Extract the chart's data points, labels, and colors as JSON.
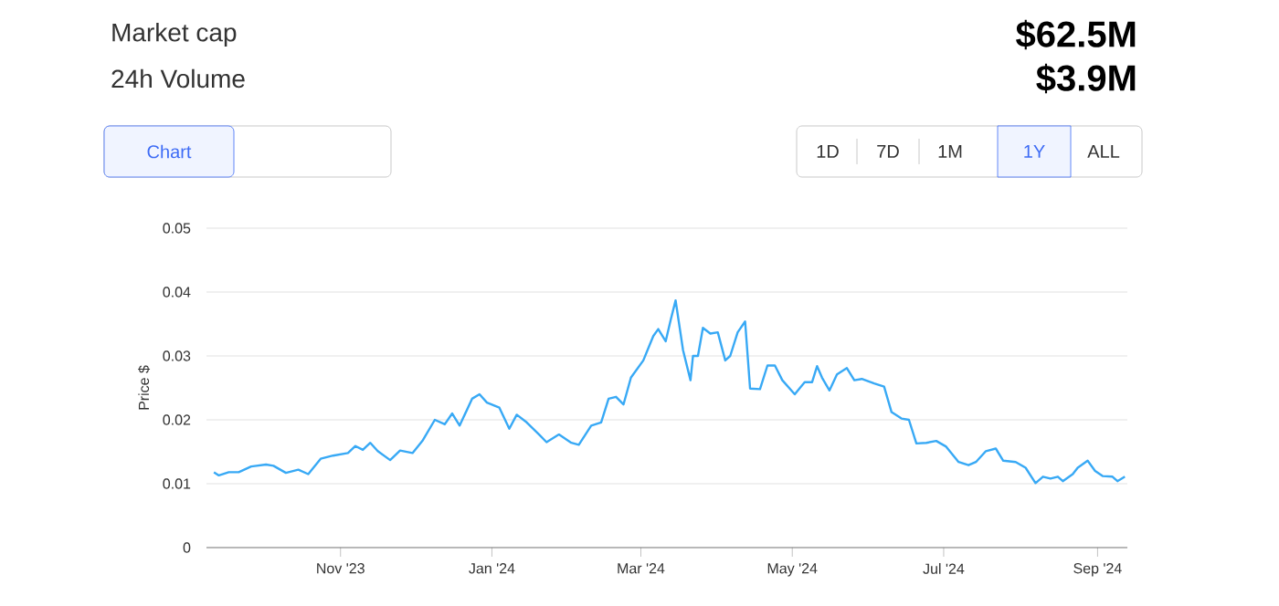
{
  "chart_data": {
    "type": "line",
    "ylabel": "Price $",
    "annotations": [
      "Market cap",
      "24h Volume",
      "$62.5M",
      "$3.9M",
      "Chart",
      "1D",
      "7D",
      "1M",
      "1Y",
      "ALL"
    ],
    "x": [
      "2023-09-11",
      "2023-09-13",
      "2023-09-17",
      "2023-09-21",
      "2023-09-26",
      "2023-10-02",
      "2023-10-05",
      "2023-10-10",
      "2023-10-15",
      "2023-10-19",
      "2023-10-24",
      "2023-10-29",
      "2023-11-04",
      "2023-11-07",
      "2023-11-10",
      "2023-11-13",
      "2023-11-16",
      "2023-11-21",
      "2023-11-25",
      "2023-11-30",
      "2023-12-04",
      "2023-12-09",
      "2023-12-13",
      "2023-12-16",
      "2023-12-19",
      "2023-12-24",
      "2023-12-27",
      "2023-12-30",
      "2024-01-04",
      "2024-01-08",
      "2024-01-11",
      "2024-01-15",
      "2024-01-20",
      "2024-01-23",
      "2024-01-28",
      "2024-02-02",
      "2024-02-05",
      "2024-02-10",
      "2024-02-14",
      "2024-02-17",
      "2024-02-20",
      "2024-02-23",
      "2024-02-26",
      "2024-03-02",
      "2024-03-06",
      "2024-03-08",
      "2024-03-11",
      "2024-03-13",
      "2024-03-15",
      "2024-03-18",
      "2024-03-21",
      "2024-03-22",
      "2024-03-24",
      "2024-03-26",
      "2024-03-29",
      "2024-04-01",
      "2024-04-04",
      "2024-04-06",
      "2024-04-09",
      "2024-04-12",
      "2024-04-14",
      "2024-04-18",
      "2024-04-21",
      "2024-04-24",
      "2024-04-27",
      "2024-05-02",
      "2024-05-06",
      "2024-05-09",
      "2024-05-11",
      "2024-05-13",
      "2024-05-16",
      "2024-05-19",
      "2024-05-23",
      "2024-05-26",
      "2024-05-29",
      "2024-06-03",
      "2024-06-07",
      "2024-06-10",
      "2024-06-14",
      "2024-06-17",
      "2024-06-20",
      "2024-06-24",
      "2024-06-28",
      "2024-07-02",
      "2024-07-07",
      "2024-07-11",
      "2024-07-14",
      "2024-07-18",
      "2024-07-22",
      "2024-07-25",
      "2024-07-30",
      "2024-08-03",
      "2024-08-07",
      "2024-08-10",
      "2024-08-13",
      "2024-08-16",
      "2024-08-18",
      "2024-08-22",
      "2024-08-24",
      "2024-08-28",
      "2024-08-31",
      "2024-09-03",
      "2024-09-07",
      "2024-09-09",
      "2024-09-12"
    ],
    "series": [
      {
        "color": "#38a9f5",
        "values": [
          0.0118,
          0.0113,
          0.0118,
          0.0118,
          0.0127,
          0.013,
          0.0128,
          0.0117,
          0.0122,
          0.0115,
          0.0139,
          0.0144,
          0.0148,
          0.0159,
          0.0153,
          0.0164,
          0.0151,
          0.0137,
          0.0152,
          0.0148,
          0.0167,
          0.02,
          0.0193,
          0.021,
          0.0191,
          0.0233,
          0.024,
          0.0227,
          0.0219,
          0.0186,
          0.0208,
          0.0196,
          0.0177,
          0.0165,
          0.0177,
          0.0164,
          0.0161,
          0.0191,
          0.0196,
          0.0233,
          0.0236,
          0.0224,
          0.0266,
          0.0293,
          0.0331,
          0.0342,
          0.0323,
          0.0356,
          0.0387,
          0.0309,
          0.0262,
          0.03,
          0.03,
          0.0344,
          0.0335,
          0.0337,
          0.0293,
          0.03,
          0.0337,
          0.0354,
          0.0249,
          0.0248,
          0.0285,
          0.0285,
          0.0262,
          0.024,
          0.0259,
          0.0259,
          0.0284,
          0.0266,
          0.0246,
          0.0271,
          0.0281,
          0.0262,
          0.0264,
          0.0257,
          0.0252,
          0.0212,
          0.0202,
          0.02,
          0.0163,
          0.0164,
          0.0167,
          0.0158,
          0.0134,
          0.0129,
          0.0134,
          0.0151,
          0.0155,
          0.0136,
          0.0134,
          0.0125,
          0.0101,
          0.0111,
          0.0108,
          0.0111,
          0.0104,
          0.0115,
          0.0125,
          0.0136,
          0.012,
          0.0112,
          0.0111,
          0.0104,
          0.0111
        ]
      }
    ],
    "xlim": [
      "2023-09-08",
      "2024-09-13"
    ],
    "xticks": [
      {
        "value": "2023-11-01",
        "label": "Nov '23"
      },
      {
        "value": "2024-01-01",
        "label": "Jan '24"
      },
      {
        "value": "2024-03-01",
        "label": "Mar '24"
      },
      {
        "value": "2024-05-01",
        "label": "May '24"
      },
      {
        "value": "2024-07-01",
        "label": "Jul '24"
      },
      {
        "value": "2024-09-01",
        "label": "Sep '24"
      }
    ],
    "ylim": [
      0,
      0.05
    ],
    "yticks": [
      0,
      0.01,
      0.02,
      0.03,
      0.04,
      0.05
    ],
    "grid": "y",
    "line_style": "solid",
    "marker": "none"
  }
}
